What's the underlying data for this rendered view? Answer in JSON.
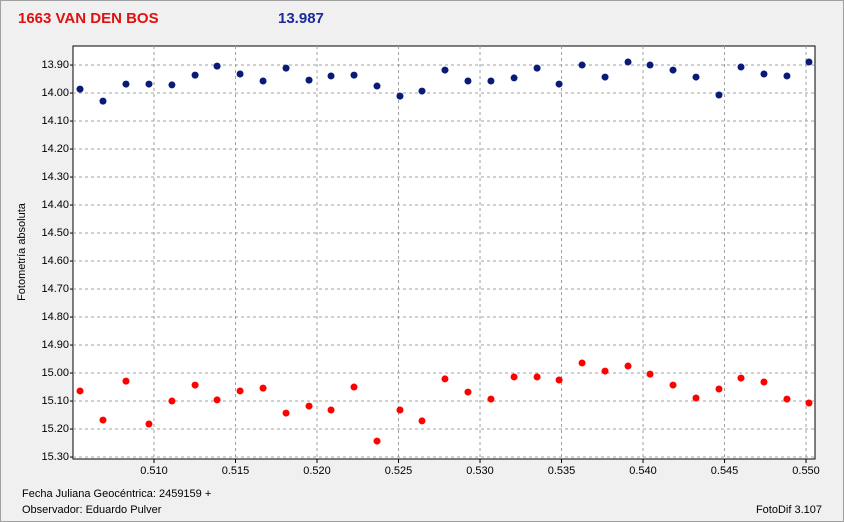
{
  "chart_data": {
    "type": "scatter",
    "title": "1663 VAN DEN BOS",
    "subtitle": "13.987",
    "ylabel": "Fotometría absoluta",
    "xlabel": "Fecha Juliana Geocéntrica: 2459159 +",
    "observer": "Observador: Eduardo Pulver",
    "software": "FotoDif 3.107",
    "invert_y": true,
    "grid": true,
    "x": [
      0.50546,
      0.50687,
      0.50828,
      0.50969,
      0.5111,
      0.51252,
      0.51387,
      0.51528,
      0.51669,
      0.5181,
      0.51951,
      0.52086,
      0.52227,
      0.52368,
      0.52509,
      0.52644,
      0.52785,
      0.52926,
      0.53067,
      0.53209,
      0.5335,
      0.53485,
      0.53626,
      0.53767,
      0.53908,
      0.54043,
      0.54184,
      0.54325,
      0.54466,
      0.54601,
      0.54742,
      0.54883,
      0.55018
    ],
    "series": [
      {
        "color": "#0a1a78",
        "values": [
          13.986,
          14.029,
          13.968,
          13.968,
          13.971,
          13.936,
          13.904,
          13.932,
          13.957,
          13.911,
          13.954,
          13.939,
          13.936,
          13.975,
          14.011,
          13.993,
          13.918,
          13.957,
          13.957,
          13.946,
          13.911,
          13.968,
          13.9,
          13.943,
          13.889,
          13.9,
          13.918,
          13.943,
          14.007,
          13.907,
          13.932,
          13.939,
          13.889
        ]
      },
      {
        "color": "#ff0000",
        "values": [
          15.064,
          15.168,
          15.029,
          15.182,
          15.1,
          15.043,
          15.096,
          15.064,
          15.054,
          15.143,
          15.118,
          15.132,
          15.05,
          15.243,
          15.132,
          15.171,
          15.021,
          15.068,
          15.093,
          15.014,
          15.014,
          15.025,
          14.964,
          14.993,
          14.975,
          15.004,
          15.043,
          15.089,
          15.057,
          15.018,
          15.032,
          15.093,
          15.107
        ]
      }
    ],
    "xlim": [
      0.50503,
      0.55055
    ],
    "ylim": [
      13.832,
      15.307
    ],
    "xticks": [
      {
        "value": 0.51,
        "label": "0.510"
      },
      {
        "value": 0.515,
        "label": "0.515"
      },
      {
        "value": 0.52,
        "label": "0.520"
      },
      {
        "value": 0.525,
        "label": "0.525"
      },
      {
        "value": 0.53,
        "label": "0.530"
      },
      {
        "value": 0.535,
        "label": "0.535"
      },
      {
        "value": 0.54,
        "label": "0.540"
      },
      {
        "value": 0.545,
        "label": "0.545"
      },
      {
        "value": 0.55,
        "label": "0.550"
      }
    ],
    "yticks": [
      {
        "value": 13.9,
        "label": "13.90"
      },
      {
        "value": 14.0,
        "label": "14.00"
      },
      {
        "value": 14.1,
        "label": "14.10"
      },
      {
        "value": 14.2,
        "label": "14.20"
      },
      {
        "value": 14.3,
        "label": "14.30"
      },
      {
        "value": 14.4,
        "label": "14.40"
      },
      {
        "value": 14.5,
        "label": "14.50"
      },
      {
        "value": 14.6,
        "label": "14.60"
      },
      {
        "value": 14.7,
        "label": "14.70"
      },
      {
        "value": 14.8,
        "label": "14.80"
      },
      {
        "value": 14.9,
        "label": "14.90"
      },
      {
        "value": 15.0,
        "label": "15.00"
      },
      {
        "value": 15.1,
        "label": "15.10"
      },
      {
        "value": 15.2,
        "label": "15.20"
      },
      {
        "value": 15.3,
        "label": "15.30"
      }
    ]
  }
}
